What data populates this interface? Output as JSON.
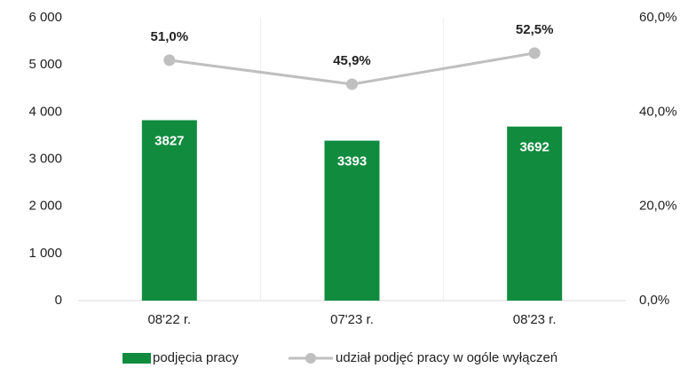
{
  "chart_data": {
    "type": "bar",
    "categories": [
      "08'22 r.",
      "07'23 r.",
      "08'23 r."
    ],
    "series": [
      {
        "name": "podjęcia pracy",
        "color": "#118c3f",
        "values": [
          3827,
          3393,
          3692
        ]
      },
      {
        "name": "udział podjęć pracy w ogóle wyłączeń",
        "color": "#bfbfbf",
        "type": "line",
        "axis": "y2",
        "values": [
          51.0,
          45.9,
          52.5
        ],
        "value_labels": [
          "51,0%",
          "45,9%",
          "52,5%"
        ]
      }
    ],
    "ylim": [
      0,
      6000
    ],
    "yticks": [
      0,
      {
        "value": 1000,
        "label": "1 000"
      },
      {
        "value": 2000,
        "label": "2 000"
      },
      {
        "value": 3000,
        "label": "3 000"
      },
      {
        "value": 4000,
        "label": "4 000"
      },
      {
        "value": 5000,
        "label": "5 000"
      },
      {
        "value": 6000,
        "label": "6 000"
      }
    ],
    "y2lim": [
      0,
      60
    ],
    "y2ticks": [
      {
        "value": 0,
        "label": "0,0%"
      },
      {
        "value": 20,
        "label": "20,0%"
      },
      {
        "value": 40,
        "label": "40,0%"
      },
      {
        "value": 60,
        "label": "60,0%"
      }
    ],
    "legend": "bottom"
  }
}
